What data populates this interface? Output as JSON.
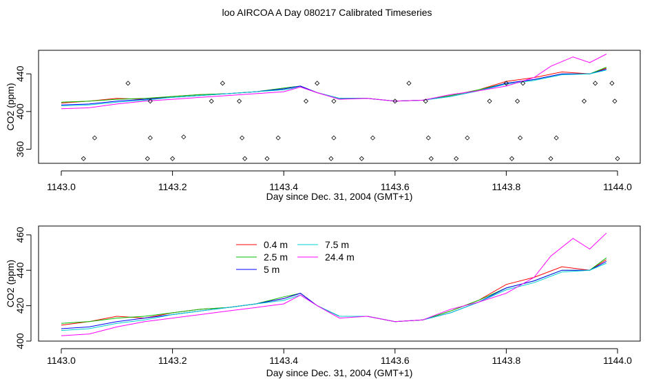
{
  "title": "loo AIRCOA A  Day 080217  Calibrated Timeseries",
  "chart_data": [
    {
      "type": "line",
      "xlabel": "Day since Dec. 31, 2004 (GMT+1)",
      "ylabel": "CO2 (ppm)",
      "xlim": [
        1143.0,
        1144.0
      ],
      "ylim": [
        345,
        465
      ],
      "xticks": [
        "1143.0",
        "1143.2",
        "1143.4",
        "1143.6",
        "1143.8",
        "1144.0"
      ],
      "yticks": [
        "360",
        "400",
        "440"
      ],
      "ytick_values": [
        360,
        400,
        440
      ],
      "series": [
        {
          "color": "#ff0000",
          "x": [
            1143.0,
            1143.05,
            1143.1,
            1143.15,
            1143.2,
            1143.25,
            1143.3,
            1143.35,
            1143.4,
            1143.43,
            1143.46,
            1143.5,
            1143.55,
            1143.6,
            1143.65,
            1143.7,
            1143.75,
            1143.8,
            1143.85,
            1143.9,
            1143.95,
            1143.98
          ],
          "y": [
            409,
            411,
            414,
            413,
            416,
            418,
            419,
            421,
            424,
            427,
            420,
            414,
            414,
            411,
            412,
            417,
            423,
            432,
            436,
            442,
            440,
            446
          ]
        },
        {
          "color": "#00c000",
          "x": [
            1143.0,
            1143.05,
            1143.1,
            1143.15,
            1143.2,
            1143.25,
            1143.3,
            1143.35,
            1143.4,
            1143.43,
            1143.46,
            1143.5,
            1143.55,
            1143.6,
            1143.65,
            1143.7,
            1143.75,
            1143.8,
            1143.85,
            1143.9,
            1143.95,
            1143.98
          ],
          "y": [
            410,
            411,
            413,
            414,
            416,
            418,
            419,
            421,
            425,
            427,
            420,
            414,
            414,
            411,
            412,
            417,
            423,
            430,
            434,
            440,
            440,
            447
          ]
        },
        {
          "color": "#0000ff",
          "x": [
            1143.0,
            1143.05,
            1143.1,
            1143.15,
            1143.2,
            1143.25,
            1143.3,
            1143.35,
            1143.4,
            1143.43,
            1143.46,
            1143.5,
            1143.55,
            1143.6,
            1143.65,
            1143.7,
            1143.75,
            1143.8,
            1143.85,
            1143.9,
            1143.95,
            1143.98
          ],
          "y": [
            407,
            408,
            411,
            413,
            415,
            417,
            419,
            421,
            424,
            427,
            420,
            414,
            414,
            411,
            412,
            416,
            422,
            430,
            434,
            440,
            440,
            445
          ]
        },
        {
          "color": "#00d0d0",
          "x": [
            1143.0,
            1143.05,
            1143.1,
            1143.15,
            1143.2,
            1143.25,
            1143.3,
            1143.35,
            1143.4,
            1143.43,
            1143.46,
            1143.5,
            1143.55,
            1143.6,
            1143.65,
            1143.7,
            1143.75,
            1143.8,
            1143.85,
            1143.9,
            1143.95,
            1143.98
          ],
          "y": [
            406,
            407,
            410,
            412,
            415,
            417,
            419,
            421,
            423,
            426,
            420,
            414,
            414,
            411,
            412,
            416,
            422,
            429,
            433,
            439,
            440,
            444
          ]
        },
        {
          "color": "#ff00ff",
          "x": [
            1143.0,
            1143.05,
            1143.1,
            1143.15,
            1143.2,
            1143.25,
            1143.3,
            1143.35,
            1143.4,
            1143.43,
            1143.46,
            1143.5,
            1143.55,
            1143.6,
            1143.65,
            1143.7,
            1143.75,
            1143.8,
            1143.85,
            1143.88,
            1143.92,
            1143.95,
            1143.98
          ],
          "y": [
            403,
            404,
            408,
            411,
            413,
            415,
            417,
            419,
            421,
            426,
            420,
            413,
            414,
            411,
            412,
            418,
            422,
            427,
            436,
            448,
            458,
            452,
            461
          ]
        }
      ],
      "markers": {
        "x": [
          1143.04,
          1143.06,
          1143.12,
          1143.155,
          1143.16,
          1143.16,
          1143.2,
          1143.22,
          1143.27,
          1143.29,
          1143.32,
          1143.325,
          1143.33,
          1143.37,
          1143.39,
          1143.44,
          1143.46,
          1143.485,
          1143.49,
          1143.49,
          1143.54,
          1143.56,
          1143.6,
          1143.625,
          1143.655,
          1143.66,
          1143.665,
          1143.71,
          1143.73,
          1143.77,
          1143.8,
          1143.81,
          1143.82,
          1143.825,
          1143.83,
          1143.88,
          1143.89,
          1143.94,
          1143.96,
          1143.99,
          1143.995,
          1144.0
        ],
        "y": [
          350,
          372,
          430,
          350,
          411,
          372,
          350,
          373,
          411,
          430,
          411,
          372,
          350,
          350,
          372,
          411,
          430,
          350,
          411,
          372,
          350,
          372,
          411,
          430,
          411,
          372,
          350,
          350,
          372,
          411,
          430,
          350,
          411,
          372,
          430,
          350,
          372,
          411,
          430,
          430,
          411,
          350
        ]
      }
    },
    {
      "type": "line",
      "xlabel": "Day since Dec. 31, 2004 (GMT+1)",
      "ylabel": "CO2 (ppm)",
      "xlim": [
        1143.0,
        1144.0
      ],
      "ylim": [
        400,
        465
      ],
      "xticks": [
        "1143.0",
        "1143.2",
        "1143.4",
        "1143.6",
        "1143.8",
        "1144.0"
      ],
      "yticks": [
        "400",
        "420",
        "440",
        "460"
      ],
      "ytick_values": [
        400,
        420,
        440,
        460
      ],
      "legend": [
        "0.4 m",
        "2.5 m",
        "5 m",
        "7.5 m",
        "24.4 m"
      ],
      "series": [
        {
          "name": "0.4 m",
          "color": "#ff0000",
          "x": [
            1143.0,
            1143.05,
            1143.1,
            1143.15,
            1143.2,
            1143.25,
            1143.3,
            1143.35,
            1143.4,
            1143.43,
            1143.46,
            1143.5,
            1143.55,
            1143.6,
            1143.65,
            1143.7,
            1143.75,
            1143.8,
            1143.85,
            1143.9,
            1143.95,
            1143.98
          ],
          "y": [
            409,
            411,
            414,
            413,
            416,
            418,
            419,
            421,
            424,
            427,
            420,
            414,
            414,
            411,
            412,
            417,
            423,
            432,
            436,
            442,
            440,
            446
          ]
        },
        {
          "name": "2.5 m",
          "color": "#00c000",
          "x": [
            1143.0,
            1143.05,
            1143.1,
            1143.15,
            1143.2,
            1143.25,
            1143.3,
            1143.35,
            1143.4,
            1143.43,
            1143.46,
            1143.5,
            1143.55,
            1143.6,
            1143.65,
            1143.7,
            1143.75,
            1143.8,
            1143.85,
            1143.9,
            1143.95,
            1143.98
          ],
          "y": [
            410,
            411,
            413,
            414,
            416,
            418,
            419,
            421,
            425,
            427,
            420,
            414,
            414,
            411,
            412,
            417,
            423,
            430,
            434,
            440,
            440,
            447
          ]
        },
        {
          "name": "5 m",
          "color": "#0000ff",
          "x": [
            1143.0,
            1143.05,
            1143.1,
            1143.15,
            1143.2,
            1143.25,
            1143.3,
            1143.35,
            1143.4,
            1143.43,
            1143.46,
            1143.5,
            1143.55,
            1143.6,
            1143.65,
            1143.7,
            1143.75,
            1143.8,
            1143.85,
            1143.9,
            1143.95,
            1143.98
          ],
          "y": [
            407,
            408,
            411,
            413,
            415,
            417,
            419,
            421,
            424,
            427,
            420,
            414,
            414,
            411,
            412,
            416,
            422,
            430,
            434,
            440,
            440,
            445
          ]
        },
        {
          "name": "7.5 m",
          "color": "#00d0d0",
          "x": [
            1143.0,
            1143.05,
            1143.1,
            1143.15,
            1143.2,
            1143.25,
            1143.3,
            1143.35,
            1143.4,
            1143.43,
            1143.46,
            1143.5,
            1143.55,
            1143.6,
            1143.65,
            1143.7,
            1143.75,
            1143.8,
            1143.85,
            1143.9,
            1143.95,
            1143.98
          ],
          "y": [
            406,
            407,
            410,
            412,
            415,
            417,
            419,
            421,
            423,
            426,
            420,
            414,
            414,
            411,
            412,
            416,
            422,
            429,
            433,
            439,
            440,
            444
          ]
        },
        {
          "name": "24.4 m",
          "color": "#ff00ff",
          "x": [
            1143.0,
            1143.05,
            1143.1,
            1143.15,
            1143.2,
            1143.25,
            1143.3,
            1143.35,
            1143.4,
            1143.43,
            1143.46,
            1143.5,
            1143.55,
            1143.6,
            1143.65,
            1143.7,
            1143.75,
            1143.8,
            1143.85,
            1143.88,
            1143.92,
            1143.95,
            1143.98
          ],
          "y": [
            403,
            404,
            408,
            411,
            413,
            415,
            417,
            419,
            421,
            426,
            420,
            413,
            414,
            411,
            412,
            418,
            422,
            427,
            436,
            448,
            458,
            452,
            461
          ]
        }
      ]
    }
  ]
}
